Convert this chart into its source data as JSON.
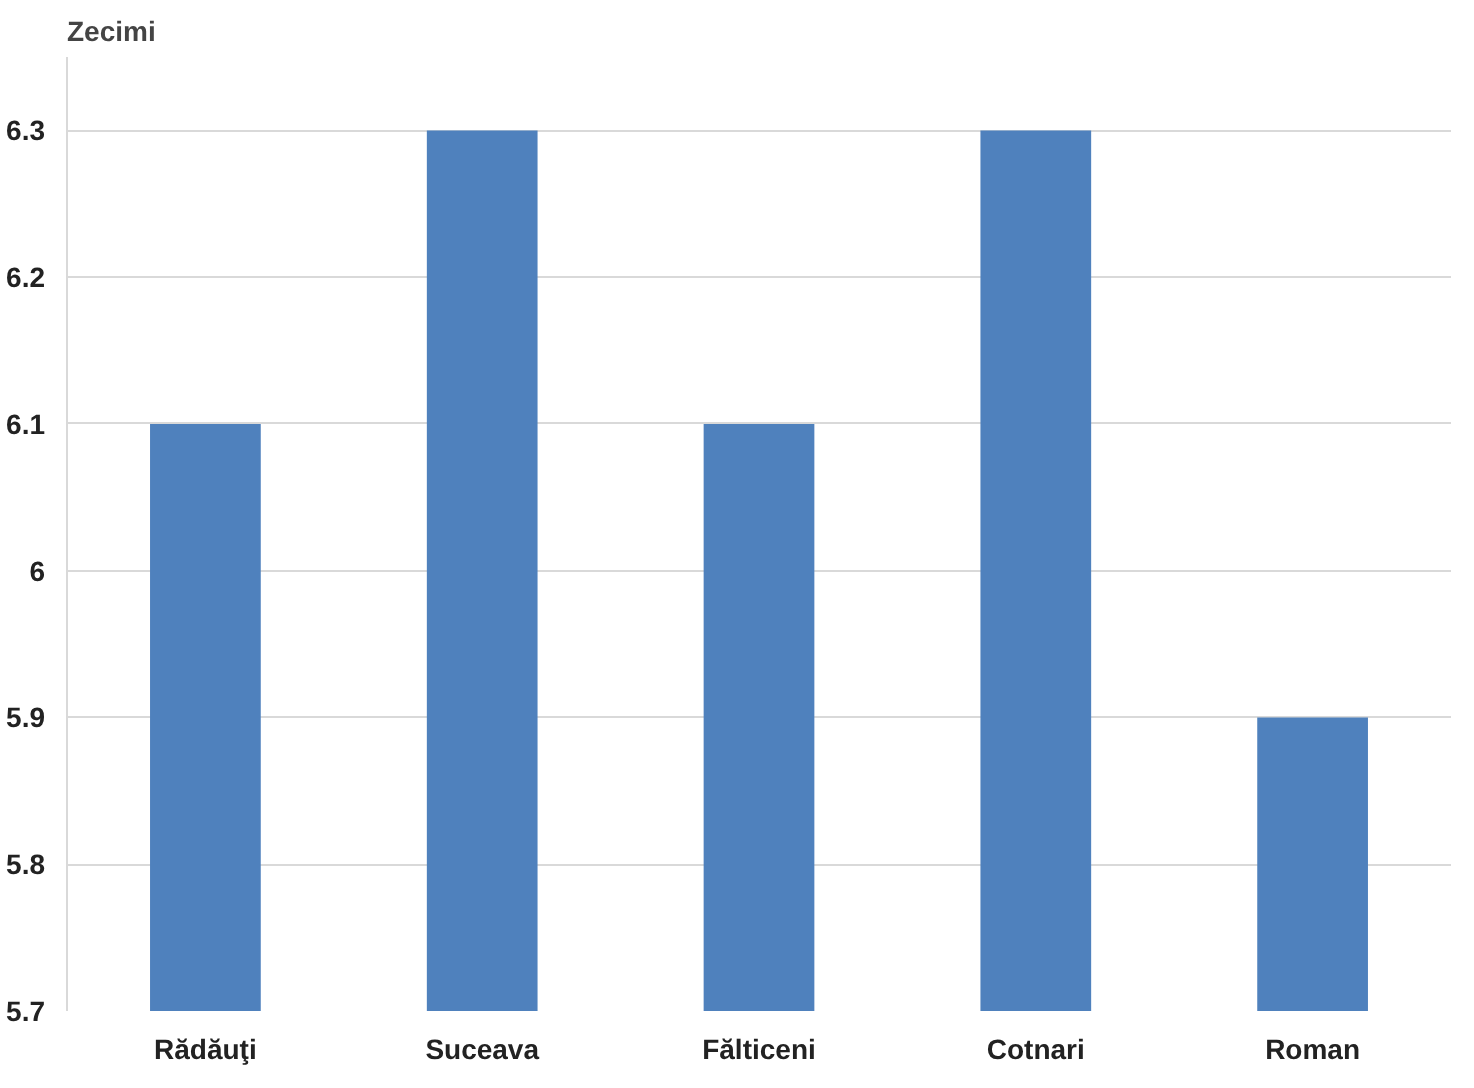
{
  "chart_data": {
    "type": "bar",
    "ylabel": "Zecimi",
    "categories": [
      "Rădăuţi",
      "Suceava",
      "Fălticeni",
      "Cotnari",
      "Roman"
    ],
    "values": [
      6.1,
      6.3,
      6.1,
      6.3,
      5.9
    ],
    "color": "#4f81bd",
    "ylim": [
      5.7,
      6.35
    ],
    "yticks": [
      5.7,
      5.8,
      5.9,
      6,
      6.1,
      6.2,
      6.3
    ],
    "grid": "y"
  }
}
